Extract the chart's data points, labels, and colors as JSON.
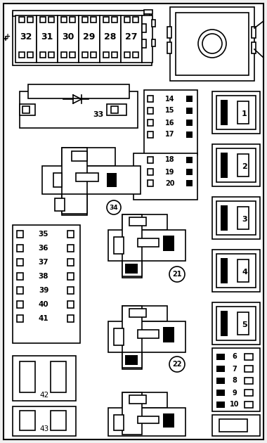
{
  "bg_color": "#f0f0f0",
  "line_color": "#000000",
  "fig_width": 3.8,
  "fig_height": 6.3,
  "fuses_top": [
    "32",
    "31",
    "30",
    "29",
    "28",
    "27"
  ],
  "fuses_mid_14_20": [
    "14",
    "15",
    "16",
    "17",
    "18",
    "19",
    "20"
  ],
  "fuses_left_35_41": [
    "35",
    "36",
    "37",
    "38",
    "39",
    "40",
    "41"
  ],
  "fuses_right_6_10": [
    "6",
    "7",
    "8",
    "9",
    "10"
  ],
  "relay_labels_1_5": [
    "1",
    "2",
    "3",
    "4",
    "5"
  ],
  "relay_labels_circ": [
    "34",
    "21",
    "22"
  ]
}
